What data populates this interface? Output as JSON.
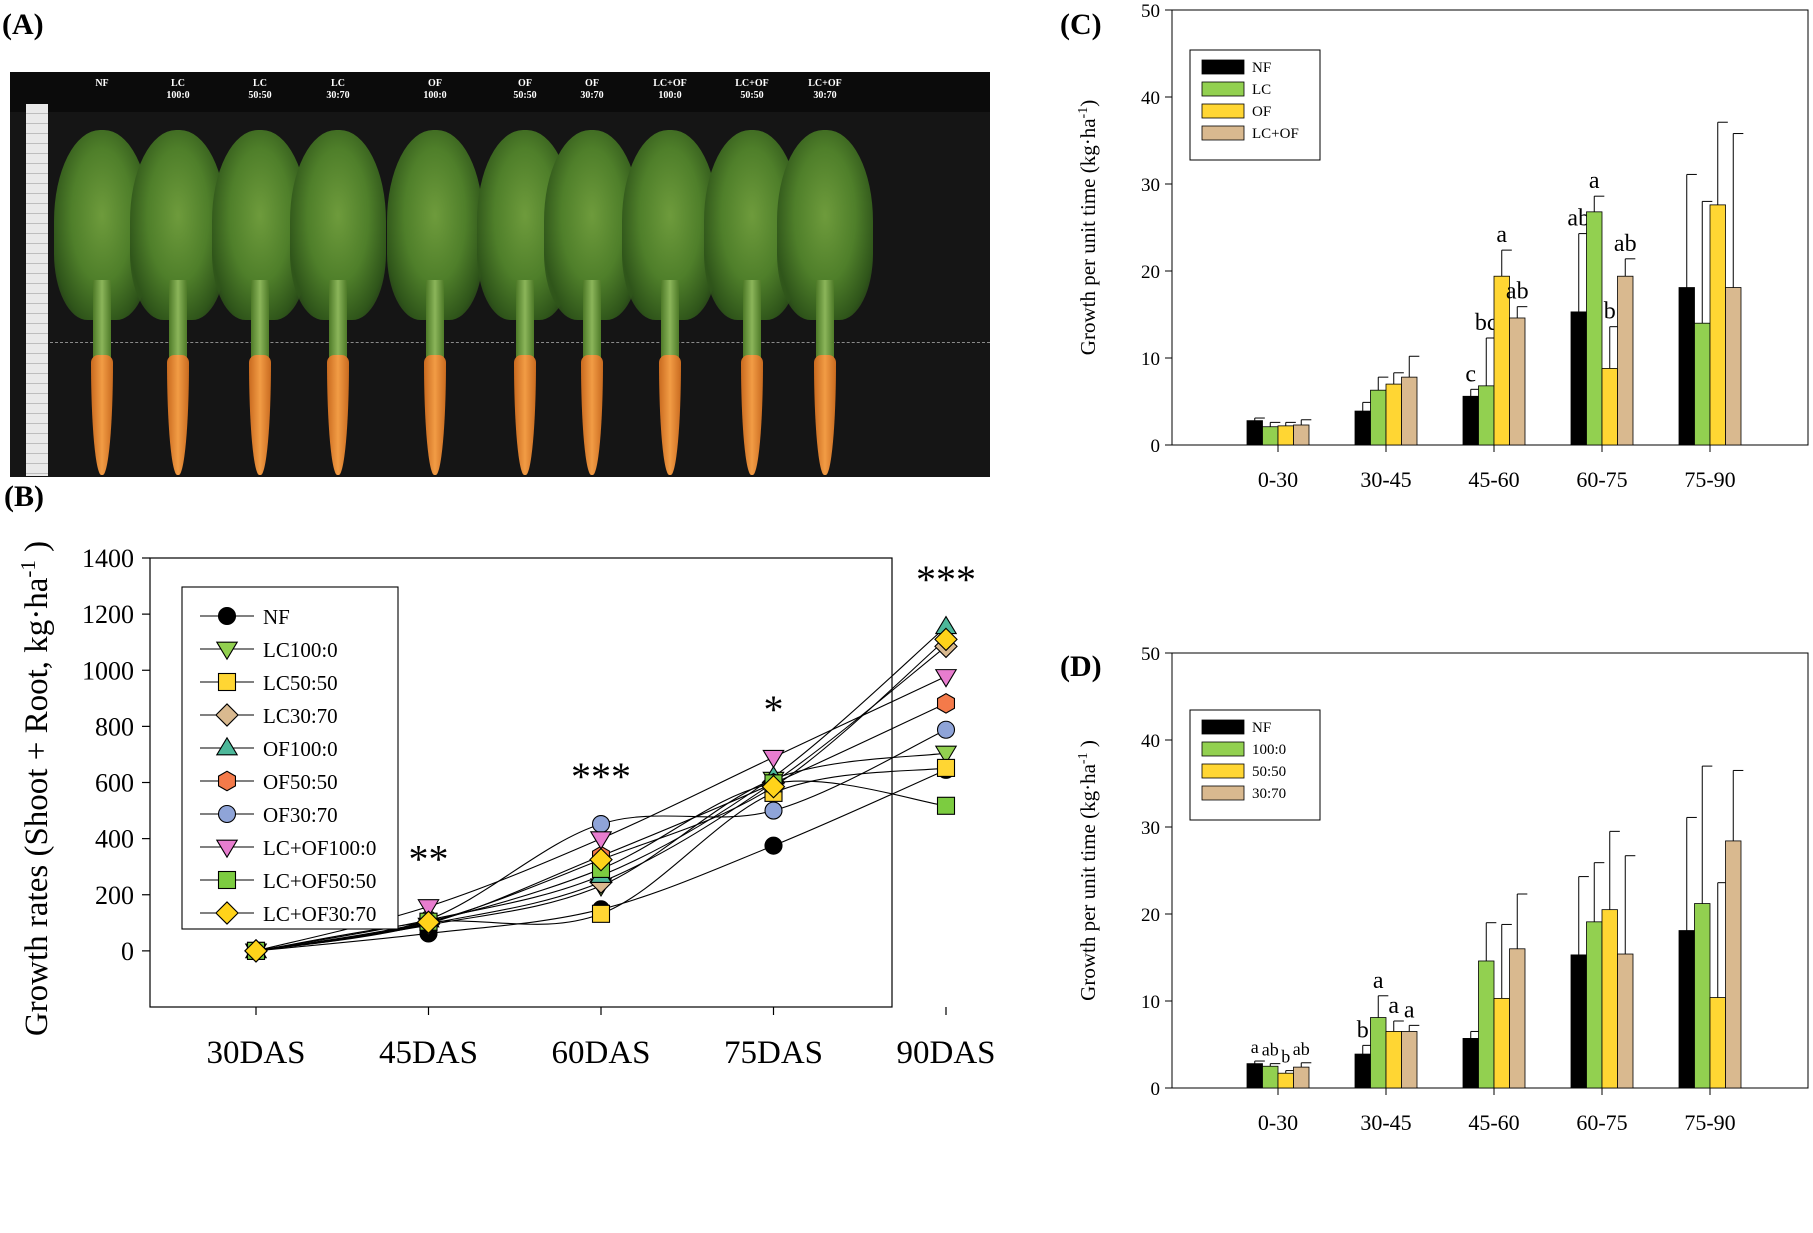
{
  "panel_labels": {
    "a": "(A)",
    "b": "(B)",
    "c": "(C)",
    "d": "(D)"
  },
  "photo": {
    "labels": [
      {
        "l1": "NF",
        "l2": ""
      },
      {
        "l1": "LC",
        "l2": "100:0"
      },
      {
        "l1": "LC",
        "l2": "50:50"
      },
      {
        "l1": "LC",
        "l2": "30:70"
      },
      {
        "l1": "OF",
        "l2": "100:0"
      },
      {
        "l1": "OF",
        "l2": "50:50"
      },
      {
        "l1": "OF",
        "l2": "30:70"
      },
      {
        "l1": "LC+OF",
        "l2": "100:0"
      },
      {
        "l1": "LC+OF",
        "l2": "50:50"
      },
      {
        "l1": "LC+OF",
        "l2": "30:70"
      }
    ]
  },
  "colors": {
    "black": "#000000",
    "green": "#92d050",
    "yellow": "#ffd633",
    "tan": "#d9b98f",
    "teal": "#4db89a",
    "orange": "#f47a4a",
    "blue": "#8fa4d8",
    "pink": "#e87dcf",
    "lgreen": "#7ccc40",
    "gold": "#ffd31a",
    "ltan": "#d6b088"
  },
  "chart_data": [
    {
      "type": "line",
      "title": "",
      "xlabel": "",
      "ylabel": "Growth rates (Shoot + Root, kg·ha⁻¹ )",
      "ylim": [
        -200,
        1400
      ],
      "yticks": [
        0,
        200,
        400,
        600,
        800,
        1000,
        1200,
        1400
      ],
      "categories": [
        "30DAS",
        "45DAS",
        "60DAS",
        "75DAS",
        "90DAS"
      ],
      "significance": [
        "",
        "**",
        "***",
        "*",
        "***"
      ],
      "series": [
        {
          "name": "NF",
          "marker": "circle",
          "color": "#000000",
          "values": [
            0,
            62,
            148,
            375,
            645
          ]
        },
        {
          "name": "LC100:0",
          "marker": "tri-down",
          "color": "#92d050",
          "values": [
            0,
            92,
            232,
            612,
            705
          ]
        },
        {
          "name": "LC50:50",
          "marker": "square",
          "color": "#ffd633",
          "values": [
            0,
            102,
            132,
            563,
            652
          ]
        },
        {
          "name": "LC30:70",
          "marker": "diamond",
          "color": "#d9b98f",
          "values": [
            0,
            96,
            245,
            600,
            1085
          ]
        },
        {
          "name": "OF100:0",
          "marker": "tri-up",
          "color": "#4db89a",
          "values": [
            0,
            110,
            268,
            620,
            1155
          ]
        },
        {
          "name": "OF50:50",
          "marker": "hexagon",
          "color": "#f47a4a",
          "values": [
            0,
            98,
            338,
            597,
            882
          ]
        },
        {
          "name": "OF30:70",
          "marker": "circle",
          "color": "#8fa4d8",
          "values": [
            0,
            112,
            452,
            500,
            788
          ]
        },
        {
          "name": "LC+OF100:0",
          "marker": "tri-down",
          "color": "#e87dcf",
          "values": [
            0,
            158,
            400,
            690,
            978
          ]
        },
        {
          "name": "LC+OF50:50",
          "marker": "square",
          "color": "#7ccc40",
          "values": [
            0,
            104,
            292,
            597,
            517
          ]
        },
        {
          "name": "LC+OF30:70",
          "marker": "diamond",
          "color": "#ffd31a",
          "values": [
            0,
            102,
            325,
            585,
            1110
          ]
        }
      ]
    },
    {
      "type": "bar",
      "title": "",
      "xlabel": "",
      "ylabel": "Growth per unit time (kg·ha⁻¹)",
      "ylim": [
        0,
        50
      ],
      "yticks": [
        0,
        10,
        20,
        30,
        40,
        50
      ],
      "categories": [
        "0-30",
        "30-45",
        "45-60",
        "60-75",
        "75-90"
      ],
      "series": [
        {
          "name": "NF",
          "color": "#000000",
          "values": [
            2.8,
            3.9,
            5.6,
            15.3,
            18.1
          ],
          "errors": [
            0.3,
            1.0,
            0.8,
            9.0,
            13.0
          ],
          "letters": [
            "",
            "",
            "c",
            "ab",
            ""
          ]
        },
        {
          "name": "LC",
          "color": "#92d050",
          "values": [
            2.1,
            6.3,
            6.8,
            26.8,
            14.0
          ],
          "errors": [
            0.5,
            1.5,
            5.5,
            1.8,
            14.0
          ],
          "letters": [
            "",
            "",
            "bc",
            "a",
            ""
          ]
        },
        {
          "name": "OF",
          "color": "#ffd633",
          "values": [
            2.2,
            7.0,
            19.4,
            8.8,
            27.6
          ],
          "errors": [
            0.4,
            1.3,
            3.0,
            4.8,
            9.5
          ],
          "letters": [
            "",
            "",
            "a",
            "b",
            ""
          ]
        },
        {
          "name": "LC+OF",
          "color": "#d9b98f",
          "values": [
            2.3,
            7.8,
            14.6,
            19.4,
            18.1
          ],
          "errors": [
            0.6,
            2.4,
            1.3,
            2.0,
            17.7
          ],
          "letters": [
            "",
            "",
            "ab",
            "ab",
            ""
          ]
        }
      ]
    },
    {
      "type": "bar",
      "title": "",
      "xlabel": "",
      "ylabel": "Growth per unit time (kg·ha⁻¹ )",
      "ylim": [
        0,
        50
      ],
      "yticks": [
        0,
        10,
        20,
        30,
        40,
        50
      ],
      "categories": [
        "0-30",
        "30-45",
        "45-60",
        "60-75",
        "75-90"
      ],
      "series": [
        {
          "name": "NF",
          "color": "#000000",
          "values": [
            2.8,
            3.9,
            5.7,
            15.3,
            18.1
          ],
          "errors": [
            0.3,
            1.0,
            0.8,
            9.0,
            13.0
          ],
          "letters": [
            "a",
            "b",
            "",
            "",
            ""
          ]
        },
        {
          "name": "100:0",
          "color": "#92d050",
          "values": [
            2.5,
            8.1,
            14.6,
            19.1,
            21.2
          ],
          "errors": [
            0.3,
            2.5,
            4.4,
            6.8,
            15.8
          ],
          "letters": [
            "ab",
            "a",
            "",
            "",
            ""
          ]
        },
        {
          "name": "50:50",
          "color": "#ffd633",
          "values": [
            1.7,
            6.5,
            10.3,
            20.5,
            10.4
          ],
          "errors": [
            0.3,
            1.2,
            8.5,
            9.0,
            13.2
          ],
          "letters": [
            "b",
            "a",
            "",
            "",
            ""
          ]
        },
        {
          "name": "30:70",
          "color": "#d9b98f",
          "values": [
            2.4,
            6.5,
            16.0,
            15.4,
            28.4
          ],
          "errors": [
            0.5,
            0.7,
            6.3,
            11.3,
            8.1
          ],
          "letters": [
            "ab",
            "a",
            "",
            "",
            ""
          ]
        }
      ]
    }
  ]
}
